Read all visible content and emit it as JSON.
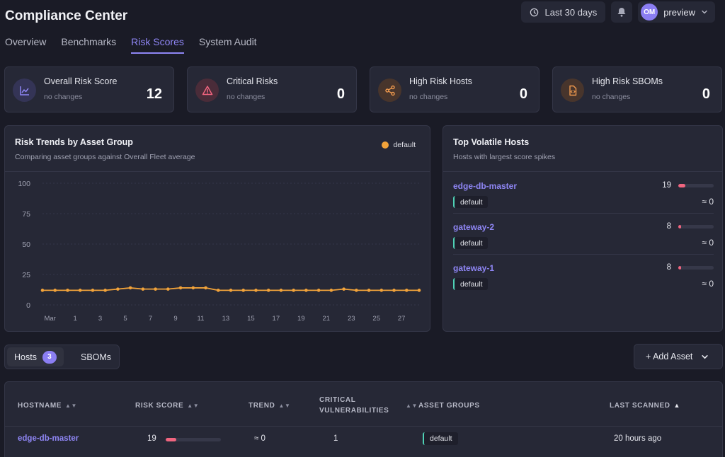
{
  "app": {
    "title": "Compliance Center"
  },
  "header": {
    "date_range": "Last 30 days",
    "user_initials": "OM",
    "user_name": "preview"
  },
  "tabs": [
    {
      "label": "Overview",
      "active": false
    },
    {
      "label": "Benchmarks",
      "active": false
    },
    {
      "label": "Risk Scores",
      "active": true
    },
    {
      "label": "System Audit",
      "active": false
    }
  ],
  "stats": [
    {
      "label": "Overall Risk Score",
      "sub": "no changes",
      "value": "12",
      "icon": "chart-line-icon",
      "color": "#8f86f5"
    },
    {
      "label": "Critical Risks",
      "sub": "no changes",
      "value": "0",
      "icon": "warning-triangle-icon",
      "color": "#f0657f"
    },
    {
      "label": "High Risk Hosts",
      "sub": "no changes",
      "value": "0",
      "icon": "share-nodes-icon",
      "color": "#f09a4e"
    },
    {
      "label": "High Risk SBOMs",
      "sub": "no changes",
      "value": "0",
      "icon": "file-code-icon",
      "color": "#f09a4e"
    }
  ],
  "trend_card": {
    "title": "Risk Trends by Asset Group",
    "subtitle": "Comparing asset groups against Overall Fleet average"
  },
  "chart_data": {
    "type": "line",
    "title": "Risk Trends by Asset Group",
    "xlabel": "",
    "ylabel": "",
    "ylim": [
      0,
      100
    ],
    "yticks": [
      "100",
      "75",
      "50",
      "25",
      "0"
    ],
    "x_tick_labels": [
      "Mar",
      "1",
      "3",
      "5",
      "7",
      "9",
      "11",
      "13",
      "15",
      "17",
      "19",
      "21",
      "23",
      "25",
      "27"
    ],
    "grid": true,
    "legend": "top-right",
    "series": [
      {
        "name": "default",
        "color": "#f2a33a",
        "values": [
          12,
          12,
          12,
          12,
          12,
          12,
          13,
          14,
          13,
          13,
          13,
          14,
          14,
          14,
          12,
          12,
          12,
          12,
          12,
          12,
          12,
          12,
          12,
          12,
          13,
          12,
          12,
          12,
          12,
          12,
          12
        ]
      }
    ]
  },
  "hosts_card": {
    "title": "Top Volatile Hosts",
    "subtitle": "Hosts with largest score spikes",
    "items": [
      {
        "name": "edge-db-master",
        "group": "default",
        "score": "19",
        "score_pct": 19,
        "trend": "≈ 0"
      },
      {
        "name": "gateway-2",
        "group": "default",
        "score": "8",
        "score_pct": 8,
        "trend": "≈ 0"
      },
      {
        "name": "gateway-1",
        "group": "default",
        "score": "8",
        "score_pct": 8,
        "trend": "≈ 0"
      }
    ]
  },
  "toolbar": {
    "hosts_label": "Hosts",
    "hosts_count": "3",
    "sboms_label": "SBOMs",
    "add_label": "+ Add Asset"
  },
  "table": {
    "columns": [
      "HOSTNAME",
      "RISK SCORE",
      "TREND",
      "CRITICAL",
      "VULNERABILITIES",
      "ASSET GROUPS",
      "LAST SCANNED"
    ],
    "rows": [
      {
        "hostname": "edge-db-master",
        "risk_score": "19",
        "risk_pct": 19,
        "trend": "≈  0",
        "critical": "1",
        "group": "default",
        "last_scanned": "20 hours ago"
      }
    ]
  }
}
